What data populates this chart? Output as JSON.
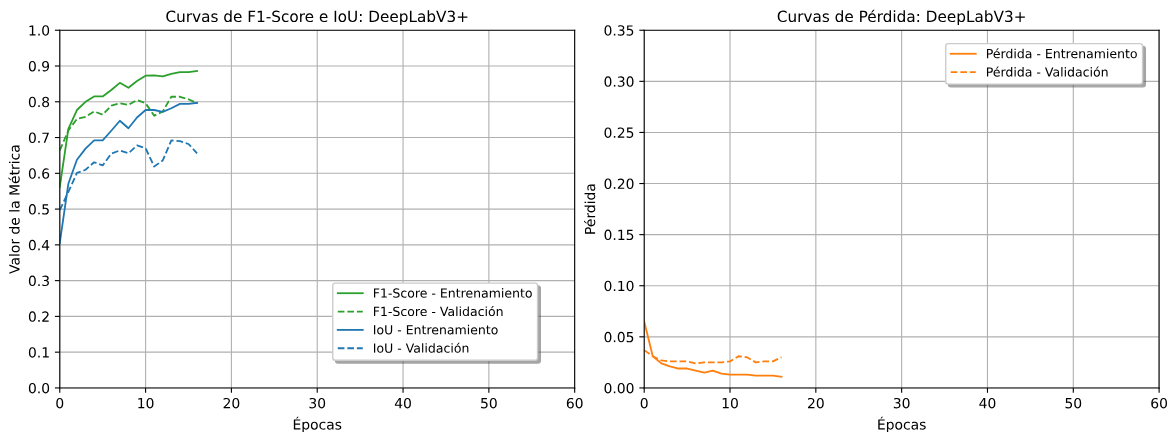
{
  "chart_data": [
    {
      "type": "line",
      "title": "Curvas de F1-Score e IoU: DeepLabV3+",
      "xlabel": "Épocas",
      "ylabel": "Valor de la Métrica",
      "x": [
        0,
        1,
        2,
        3,
        4,
        5,
        6,
        7,
        8,
        9,
        10,
        11,
        12,
        13,
        14,
        15,
        16
      ],
      "xlim": [
        0,
        60
      ],
      "xticks": [
        0,
        10,
        20,
        30,
        40,
        50,
        60
      ],
      "ylim": [
        0.0,
        1.0
      ],
      "yticks": [
        {
          "value": 0,
          "label": "0.0"
        },
        0.1,
        0.2,
        0.3,
        0.4,
        0.5,
        0.6,
        0.7,
        0.8,
        0.9,
        {
          "value": 1,
          "label": "1.0"
        }
      ],
      "grid": true,
      "legend": "bottom right",
      "series": [
        {
          "name": "F1-Score - Entrenamiento",
          "color": "#2ca02c",
          "line_style": "solid",
          "values": [
            0.562,
            0.724,
            0.777,
            0.8,
            0.815,
            0.815,
            0.833,
            0.853,
            0.839,
            0.858,
            0.873,
            0.874,
            0.871,
            0.878,
            0.883,
            0.883,
            0.886
          ]
        },
        {
          "name": "F1-Score - Validación",
          "color": "#2ca02c",
          "line_style": "dashed",
          "values": [
            0.664,
            0.72,
            0.752,
            0.758,
            0.773,
            0.764,
            0.789,
            0.796,
            0.791,
            0.805,
            0.796,
            0.761,
            0.773,
            0.814,
            0.814,
            0.807,
            0.796
          ]
        },
        {
          "name": "IoU - Entrenamiento",
          "color": "#1f77b4",
          "line_style": "solid",
          "values": [
            0.405,
            0.571,
            0.638,
            0.669,
            0.692,
            0.692,
            0.719,
            0.747,
            0.726,
            0.756,
            0.777,
            0.777,
            0.772,
            0.782,
            0.794,
            0.794,
            0.797
          ]
        },
        {
          "name": "IoU - Validación",
          "color": "#1f77b4",
          "line_style": "dashed",
          "values": [
            0.497,
            0.548,
            0.601,
            0.61,
            0.631,
            0.622,
            0.655,
            0.664,
            0.656,
            0.678,
            0.67,
            0.619,
            0.636,
            0.692,
            0.69,
            0.682,
            0.656
          ]
        }
      ]
    },
    {
      "type": "line",
      "title": "Curvas de Pérdida: DeepLabV3+",
      "xlabel": "Épocas",
      "ylabel": "Pérdida",
      "x": [
        0,
        1,
        2,
        3,
        4,
        5,
        6,
        7,
        8,
        9,
        10,
        11,
        12,
        13,
        14,
        15,
        16
      ],
      "xlim": [
        0,
        60
      ],
      "xticks": [
        0,
        10,
        20,
        30,
        40,
        50,
        60
      ],
      "ylim": [
        0.0,
        0.35
      ],
      "yticks": [
        {
          "value": 0,
          "label": "0.00"
        },
        0.05,
        {
          "value": 0.1,
          "label": "0.10"
        },
        0.15,
        {
          "value": 0.2,
          "label": "0.20"
        },
        0.25,
        {
          "value": 0.3,
          "label": "0.30"
        },
        0.35
      ],
      "grid": true,
      "legend": "top right",
      "series": [
        {
          "name": "Pérdida - Entrenamiento",
          "color": "#ff7f0e",
          "line_style": "solid",
          "values": [
            0.065,
            0.031,
            0.024,
            0.021,
            0.019,
            0.019,
            0.017,
            0.015,
            0.017,
            0.014,
            0.013,
            0.013,
            0.013,
            0.012,
            0.012,
            0.012,
            0.011
          ]
        },
        {
          "name": "Pérdida - Validación",
          "color": "#ff7f0e",
          "line_style": "dashed",
          "values": [
            0.037,
            0.031,
            0.027,
            0.026,
            0.026,
            0.026,
            0.024,
            0.025,
            0.025,
            0.025,
            0.026,
            0.031,
            0.03,
            0.025,
            0.026,
            0.026,
            0.03
          ]
        }
      ]
    }
  ]
}
